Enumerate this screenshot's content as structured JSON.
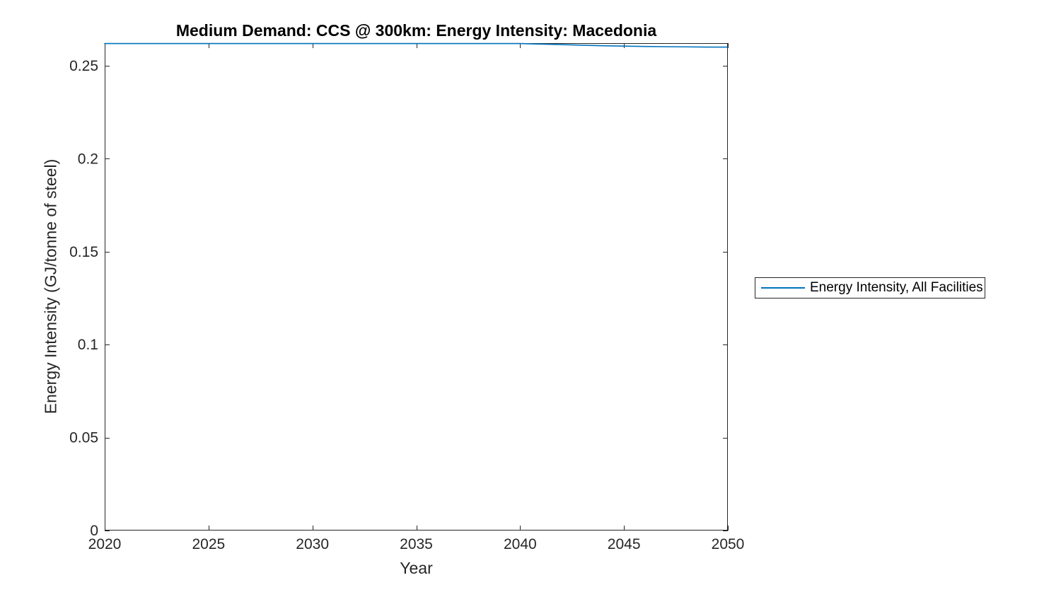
{
  "figure": {
    "background_color": "#ffffff",
    "axis_color": "#262626",
    "title_color": "#000000"
  },
  "chart_data": {
    "type": "line",
    "title": "Medium Demand: CCS @ 300km: Energy Intensity: Macedonia",
    "xlabel": "Year",
    "ylabel": "Energy Intensity (GJ/tonne of steel)",
    "xlim": [
      2020,
      2050
    ],
    "ylim": [
      0,
      0.2622
    ],
    "xticks": [
      2020,
      2025,
      2030,
      2035,
      2040,
      2045,
      2050
    ],
    "xtick_labels": [
      "2020",
      "2025",
      "2030",
      "2035",
      "2040",
      "2045",
      "2050"
    ],
    "yticks": [
      0,
      0.05,
      0.1,
      0.15,
      0.2,
      0.25
    ],
    "ytick_labels": [
      "0",
      "0.05",
      "0.1",
      "0.15",
      "0.2",
      "0.25"
    ],
    "grid": false,
    "legend": {
      "position": "outside-right",
      "entries": [
        {
          "label": "Energy Intensity, All Facilities",
          "color": "#0072BD"
        }
      ]
    },
    "series": [
      {
        "name": "Energy Intensity, All Facilities",
        "color": "#0072BD",
        "x": [
          2020,
          2021,
          2022,
          2023,
          2024,
          2025,
          2026,
          2027,
          2028,
          2029,
          2030,
          2031,
          2032,
          2033,
          2034,
          2035,
          2036,
          2037,
          2038,
          2039,
          2040,
          2041,
          2042,
          2043,
          2044,
          2045,
          2046,
          2047,
          2048,
          2049,
          2050
        ],
        "y": [
          0.262,
          0.262,
          0.262,
          0.262,
          0.262,
          0.262,
          0.262,
          0.262,
          0.262,
          0.262,
          0.262,
          0.262,
          0.262,
          0.262,
          0.262,
          0.262,
          0.262,
          0.262,
          0.262,
          0.262,
          0.262,
          0.2617,
          0.2614,
          0.2611,
          0.2608,
          0.2606,
          0.2604,
          0.2603,
          0.2602,
          0.2601,
          0.2601
        ]
      }
    ]
  }
}
